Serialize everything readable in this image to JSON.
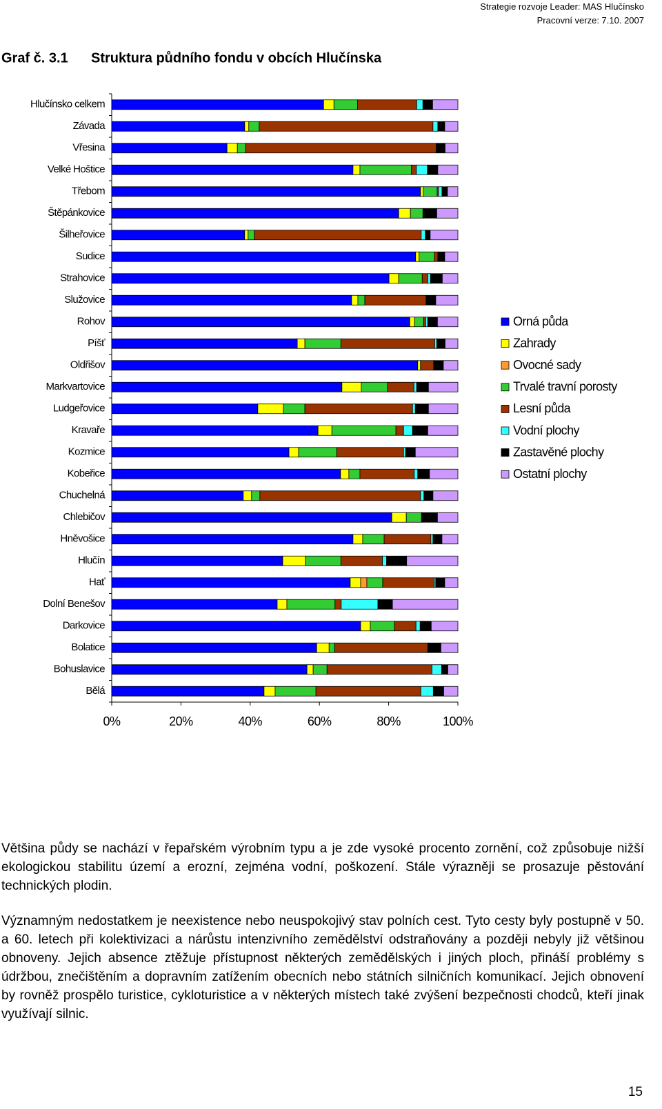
{
  "header": {
    "lines": [
      "Strategie rozvoje Leader: MAS Hlučínsko",
      "Pracovní verze: 7.10. 2007"
    ]
  },
  "chart_data": {
    "type": "bar",
    "orientation": "horizontal",
    "stacked": true,
    "figure_number": "Graf č. 3.1",
    "title": "Struktura půdního fondu v obcích Hlučínska",
    "categories": [
      "Hlučínsko celkem",
      "Závada",
      "Vřesina",
      "Velké Hoštice",
      "Třebom",
      "Štěpánkovice",
      "Šilheřovice",
      "Sudice",
      "Strahovice",
      "Služovice",
      "Rohov",
      "Píšť",
      "Oldřišov",
      "Markvartovice",
      "Ludgeřovice",
      "Kravaře",
      "Kozmice",
      "Kobeřice",
      "Chuchelná",
      "Chlebičov",
      "Hněvošice",
      "Hlučín",
      "Hať",
      "Dolní Benešov",
      "Darkovice",
      "Bolatice",
      "Bohuslavice",
      "Bělá"
    ],
    "series": [
      {
        "name": "Orná půda",
        "color": "#0000ff",
        "values": [
          61.2,
          38.4,
          33.3,
          69.7,
          89.2,
          82.9,
          38.4,
          87.8,
          80.1,
          69.3,
          86.1,
          53.6,
          88.4,
          66.5,
          42.2,
          59.6,
          51.2,
          66.1,
          38.0,
          80.9,
          69.7,
          49.4,
          68.9,
          47.8,
          71.9,
          59.2,
          56.4,
          44.0
        ]
      },
      {
        "name": "Zahrady",
        "color": "#ffff00",
        "values": [
          3.0,
          1.2,
          3.0,
          2.0,
          0.8,
          3.4,
          1.0,
          1.0,
          2.8,
          1.8,
          1.4,
          2.2,
          0.8,
          5.6,
          7.4,
          4.0,
          2.8,
          2.4,
          2.4,
          4.2,
          2.8,
          6.6,
          3.0,
          2.8,
          2.8,
          3.6,
          1.8,
          3.2
        ]
      },
      {
        "name": "Ovocné sady",
        "color": "#ff9933",
        "values": [
          0,
          0,
          0,
          0,
          0,
          0,
          0,
          0,
          0,
          0,
          0,
          0,
          0,
          0,
          0,
          0,
          0,
          0,
          0,
          0,
          0,
          0,
          1.8,
          0,
          0,
          0,
          0,
          0
        ]
      },
      {
        "name": "Trvalé travní porosty",
        "color": "#33cc33",
        "values": [
          6.8,
          3.0,
          2.4,
          14.9,
          4.0,
          3.6,
          1.8,
          4.4,
          6.8,
          2.0,
          2.6,
          10.4,
          0,
          7.6,
          6.2,
          18.5,
          11.0,
          3.2,
          2.4,
          4.4,
          6.2,
          10.2,
          4.6,
          13.9,
          7.0,
          1.6,
          4.0,
          11.8
        ]
      },
      {
        "name": "Lesní půda",
        "color": "#993300",
        "values": [
          17.1,
          50.2,
          55.0,
          1.4,
          0.4,
          0,
          48.2,
          1.0,
          1.6,
          17.7,
          0.6,
          27.1,
          3.8,
          7.6,
          31.1,
          2.2,
          19.3,
          15.7,
          46.4,
          0,
          13.5,
          12.0,
          14.9,
          1.8,
          6.2,
          26.9,
          30.3,
          30.3
        ]
      },
      {
        "name": "Vodní plochy",
        "color": "#33ffff",
        "values": [
          1.8,
          1.4,
          0,
          3.2,
          1.0,
          0,
          1.2,
          0,
          0.8,
          0,
          0.6,
          0.6,
          0,
          0.8,
          0.8,
          2.6,
          0.6,
          1.0,
          1.0,
          0,
          0.6,
          1.2,
          0.4,
          10.6,
          1.2,
          0,
          2.8,
          3.6
        ]
      },
      {
        "name": "Zastavěné plochy",
        "color": "#000000",
        "values": [
          2.8,
          2.0,
          2.6,
          3.0,
          1.6,
          4.0,
          1.4,
          2.0,
          3.4,
          2.8,
          2.8,
          2.4,
          2.8,
          3.4,
          3.8,
          4.4,
          2.8,
          3.4,
          2.6,
          4.6,
          2.6,
          5.8,
          2.6,
          4.2,
          3.2,
          3.8,
          1.8,
          3.0
        ]
      },
      {
        "name": "Ostatní plochy",
        "color": "#cc99ff",
        "values": [
          7.3,
          3.8,
          3.7,
          5.8,
          3.0,
          6.1,
          8.0,
          3.8,
          4.5,
          6.4,
          5.9,
          3.7,
          4.2,
          8.5,
          8.5,
          8.7,
          12.3,
          8.2,
          7.2,
          5.9,
          4.6,
          14.8,
          3.8,
          18.9,
          7.7,
          4.9,
          2.9,
          4.1
        ]
      }
    ],
    "xlim": [
      0,
      100
    ],
    "xticks": [
      {
        "value": 0,
        "label": "0%"
      },
      {
        "value": 20,
        "label": "20%"
      },
      {
        "value": 40,
        "label": "40%"
      },
      {
        "value": 60,
        "label": "60%"
      },
      {
        "value": 80,
        "label": "80%"
      },
      {
        "value": 100,
        "label": "100%"
      }
    ],
    "legend": "right"
  },
  "paragraphs": [
    "Většina půdy se nachází v řepařském výrobním typu a je zde vysoké procento zornění, což způsobuje nižší ekologickou stabilitu území a erozní, zejména vodní, poškození.  Stále výrazněji se prosazuje pěstování technických plodin.",
    "Významným nedostatkem je neexistence nebo neuspokojivý stav polních cest. Tyto cesty byly postupně v 50. a 60. letech při kolektivizaci a nárůstu intenzivního zemědělství odstraňovány a později nebyly již většinou obnoveny. Jejich absence ztěžuje přístupnost některých zemědělských i jiných ploch, přináší problémy s údržbou, znečištěním a dopravním zatížením obecních nebo státních silničních komunikací. Jejich obnovení by rovněž prospělo turistice, cykloturistice a v některých místech také zvýšení bezpečnosti chodců, kteří jinak využívají silnic."
  ],
  "page_number": "15"
}
